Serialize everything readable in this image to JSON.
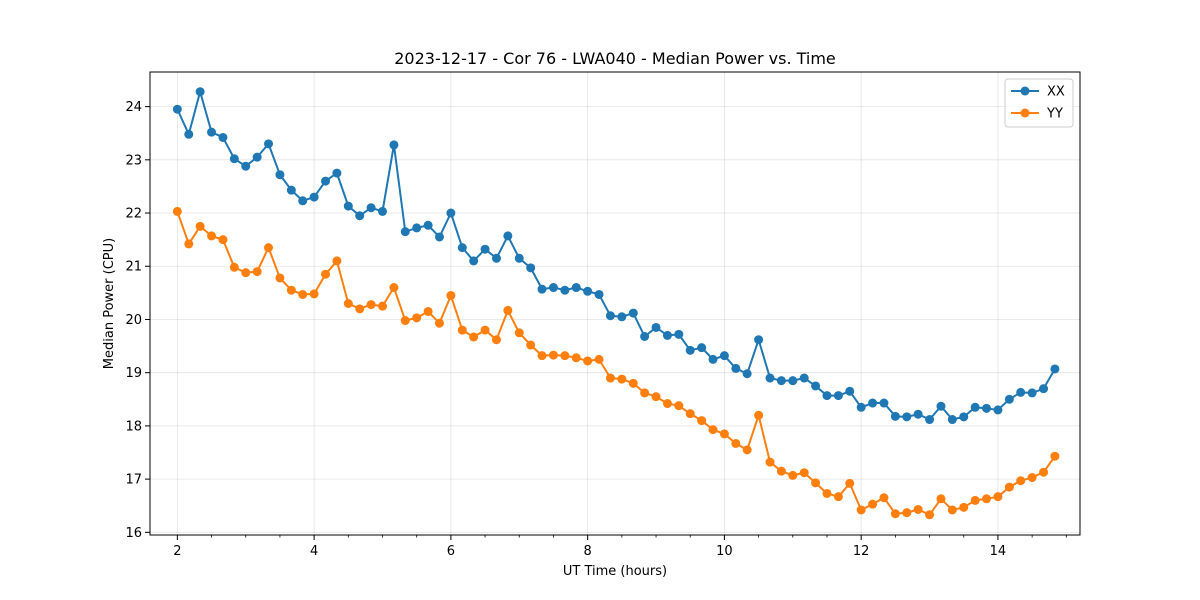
{
  "chart_data": {
    "type": "line",
    "title": "2023-12-17 - Cor 76 - LWA040 - Median Power vs. Time",
    "xlabel": "UT Time (hours)",
    "ylabel": "Median Power (CPU)",
    "xlim": [
      1.6,
      15.2
    ],
    "ylim": [
      15.95,
      24.65
    ],
    "xticks": [
      2,
      4,
      6,
      8,
      10,
      12,
      14
    ],
    "xtick_labels": [
      "2",
      "4",
      "6",
      "8",
      "10",
      "12",
      "14"
    ],
    "yticks": [
      16,
      17,
      18,
      19,
      20,
      21,
      22,
      23,
      24
    ],
    "ytick_labels": [
      "16",
      "17",
      "18",
      "19",
      "20",
      "21",
      "22",
      "23",
      "24"
    ],
    "grid": true,
    "legend_position": "top-right",
    "x": [
      2.0,
      2.167,
      2.333,
      2.5,
      2.667,
      2.833,
      3.0,
      3.167,
      3.333,
      3.5,
      3.667,
      3.833,
      4.0,
      4.167,
      4.333,
      4.5,
      4.667,
      4.833,
      5.0,
      5.167,
      5.333,
      5.5,
      5.667,
      5.833,
      6.0,
      6.167,
      6.333,
      6.5,
      6.667,
      6.833,
      7.0,
      7.167,
      7.333,
      7.5,
      7.667,
      7.833,
      8.0,
      8.167,
      8.333,
      8.5,
      8.667,
      8.833,
      9.0,
      9.167,
      9.333,
      9.5,
      9.667,
      9.833,
      10.0,
      10.167,
      10.333,
      10.5,
      10.667,
      10.833,
      11.0,
      11.167,
      11.333,
      11.5,
      11.667,
      11.833,
      12.0,
      12.167,
      12.333,
      12.5,
      12.667,
      12.833,
      13.0,
      13.167,
      13.333,
      13.5,
      13.667,
      13.833,
      14.0,
      14.167,
      14.333,
      14.5,
      14.667,
      14.833
    ],
    "series": [
      {
        "name": "XX",
        "color": "#1f77b4",
        "values": [
          23.95,
          23.48,
          24.28,
          23.52,
          23.42,
          23.02,
          22.88,
          23.05,
          23.3,
          22.72,
          22.43,
          22.23,
          22.3,
          22.6,
          22.75,
          22.13,
          21.95,
          22.1,
          22.03,
          23.28,
          21.65,
          21.72,
          21.77,
          21.55,
          22.0,
          21.35,
          21.1,
          21.32,
          21.15,
          21.57,
          21.15,
          20.97,
          20.57,
          20.6,
          20.55,
          20.6,
          20.53,
          20.47,
          20.07,
          20.05,
          20.12,
          19.68,
          19.85,
          19.7,
          19.72,
          19.42,
          19.47,
          19.25,
          19.32,
          19.08,
          18.98,
          19.62,
          18.9,
          18.85,
          18.85,
          18.9,
          18.75,
          18.57,
          18.57,
          18.65,
          18.35,
          18.43,
          18.43,
          18.18,
          18.17,
          18.22,
          18.12,
          18.37,
          18.12,
          18.17,
          18.35,
          18.33,
          18.3,
          18.5,
          18.63,
          18.62,
          18.7,
          19.07
        ]
      },
      {
        "name": "YY",
        "color": "#ff7f0e",
        "values": [
          22.03,
          21.42,
          21.75,
          21.57,
          21.5,
          20.98,
          20.88,
          20.9,
          21.35,
          20.78,
          20.55,
          20.47,
          20.48,
          20.85,
          21.1,
          20.3,
          20.2,
          20.28,
          20.25,
          20.6,
          19.98,
          20.03,
          20.15,
          19.93,
          20.45,
          19.8,
          19.67,
          19.8,
          19.62,
          20.17,
          19.75,
          19.52,
          19.32,
          19.33,
          19.32,
          19.28,
          19.22,
          19.25,
          18.9,
          18.88,
          18.8,
          18.62,
          18.55,
          18.42,
          18.38,
          18.23,
          18.1,
          17.93,
          17.85,
          17.67,
          17.55,
          18.2,
          17.32,
          17.15,
          17.07,
          17.12,
          16.93,
          16.73,
          16.67,
          16.92,
          16.42,
          16.53,
          16.65,
          16.35,
          16.37,
          16.43,
          16.33,
          16.63,
          16.42,
          16.47,
          16.6,
          16.63,
          16.67,
          16.85,
          16.97,
          17.03,
          17.13,
          17.43
        ]
      }
    ]
  }
}
